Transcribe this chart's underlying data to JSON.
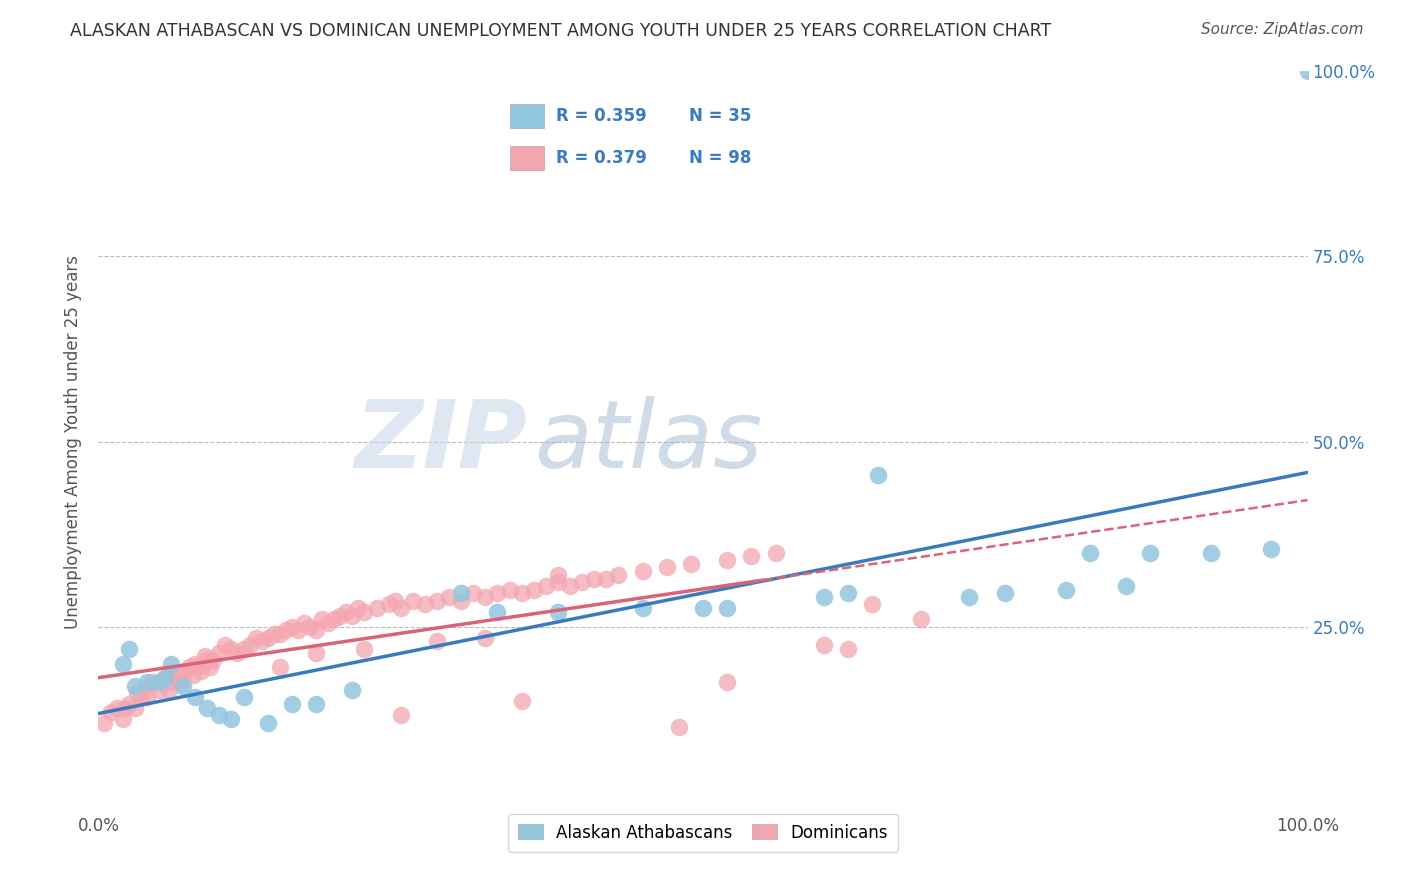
{
  "title": "ALASKAN ATHABASCAN VS DOMINICAN UNEMPLOYMENT AMONG YOUTH UNDER 25 YEARS CORRELATION CHART",
  "source_text": "Source: ZipAtlas.com",
  "ylabel": "Unemployment Among Youth under 25 years",
  "blue_R": 0.359,
  "blue_N": 35,
  "pink_R": 0.379,
  "pink_N": 98,
  "blue_color": "#92c5de",
  "pink_color": "#f4a6b0",
  "blue_line_color": "#3a7bbf",
  "pink_line_color": "#d9647a",
  "pink_dash_color": "#d9647a",
  "legend_label_blue": "Alaskan Athabascans",
  "legend_label_pink": "Dominicans",
  "watermark_zip": "ZIP",
  "watermark_atlas": "atlas",
  "xlim": [
    0,
    1
  ],
  "ylim": [
    0,
    1
  ],
  "blue_x": [
    0.02,
    0.025,
    0.03,
    0.04,
    0.05,
    0.055,
    0.06,
    0.07,
    0.08,
    0.09,
    0.1,
    0.11,
    0.12,
    0.14,
    0.16,
    0.18,
    0.21,
    0.3,
    0.33,
    0.38,
    0.45,
    0.5,
    0.52,
    0.6,
    0.62,
    0.72,
    0.75,
    0.8,
    0.82,
    0.85,
    0.87,
    0.92,
    0.97,
    0.645,
    1.0
  ],
  "blue_y": [
    0.2,
    0.22,
    0.17,
    0.175,
    0.175,
    0.18,
    0.2,
    0.17,
    0.155,
    0.14,
    0.13,
    0.125,
    0.155,
    0.12,
    0.145,
    0.145,
    0.165,
    0.295,
    0.27,
    0.27,
    0.275,
    0.275,
    0.275,
    0.29,
    0.295,
    0.29,
    0.295,
    0.3,
    0.35,
    0.305,
    0.35,
    0.35,
    0.355,
    0.455,
    1.0
  ],
  "pink_x": [
    0.005,
    0.01,
    0.015,
    0.02,
    0.022,
    0.025,
    0.03,
    0.032,
    0.035,
    0.04,
    0.042,
    0.045,
    0.05,
    0.052,
    0.055,
    0.058,
    0.06,
    0.062,
    0.065,
    0.068,
    0.07,
    0.072,
    0.075,
    0.078,
    0.08,
    0.082,
    0.085,
    0.088,
    0.09,
    0.092,
    0.095,
    0.1,
    0.105,
    0.11,
    0.115,
    0.12,
    0.125,
    0.13,
    0.135,
    0.14,
    0.145,
    0.15,
    0.155,
    0.16,
    0.165,
    0.17,
    0.175,
    0.18,
    0.185,
    0.19,
    0.195,
    0.2,
    0.205,
    0.21,
    0.215,
    0.22,
    0.23,
    0.24,
    0.245,
    0.25,
    0.26,
    0.27,
    0.28,
    0.29,
    0.3,
    0.31,
    0.32,
    0.33,
    0.34,
    0.35,
    0.36,
    0.37,
    0.38,
    0.39,
    0.4,
    0.41,
    0.42,
    0.43,
    0.45,
    0.47,
    0.49,
    0.52,
    0.54,
    0.56,
    0.38,
    0.28,
    0.32,
    0.15,
    0.22,
    0.18,
    0.35,
    0.25,
    0.48,
    0.52,
    0.6,
    0.62,
    0.64,
    0.68
  ],
  "pink_y": [
    0.12,
    0.135,
    0.14,
    0.125,
    0.14,
    0.145,
    0.14,
    0.16,
    0.155,
    0.155,
    0.17,
    0.175,
    0.165,
    0.175,
    0.18,
    0.165,
    0.175,
    0.185,
    0.18,
    0.175,
    0.185,
    0.19,
    0.195,
    0.185,
    0.2,
    0.195,
    0.19,
    0.21,
    0.205,
    0.195,
    0.205,
    0.215,
    0.225,
    0.22,
    0.215,
    0.22,
    0.225,
    0.235,
    0.23,
    0.235,
    0.24,
    0.24,
    0.245,
    0.25,
    0.245,
    0.255,
    0.25,
    0.245,
    0.26,
    0.255,
    0.26,
    0.265,
    0.27,
    0.265,
    0.275,
    0.27,
    0.275,
    0.28,
    0.285,
    0.275,
    0.285,
    0.28,
    0.285,
    0.29,
    0.285,
    0.295,
    0.29,
    0.295,
    0.3,
    0.295,
    0.3,
    0.305,
    0.31,
    0.305,
    0.31,
    0.315,
    0.315,
    0.32,
    0.325,
    0.33,
    0.335,
    0.34,
    0.345,
    0.35,
    0.32,
    0.23,
    0.235,
    0.195,
    0.22,
    0.215,
    0.15,
    0.13,
    0.115,
    0.175,
    0.225,
    0.22,
    0.28,
    0.26
  ]
}
